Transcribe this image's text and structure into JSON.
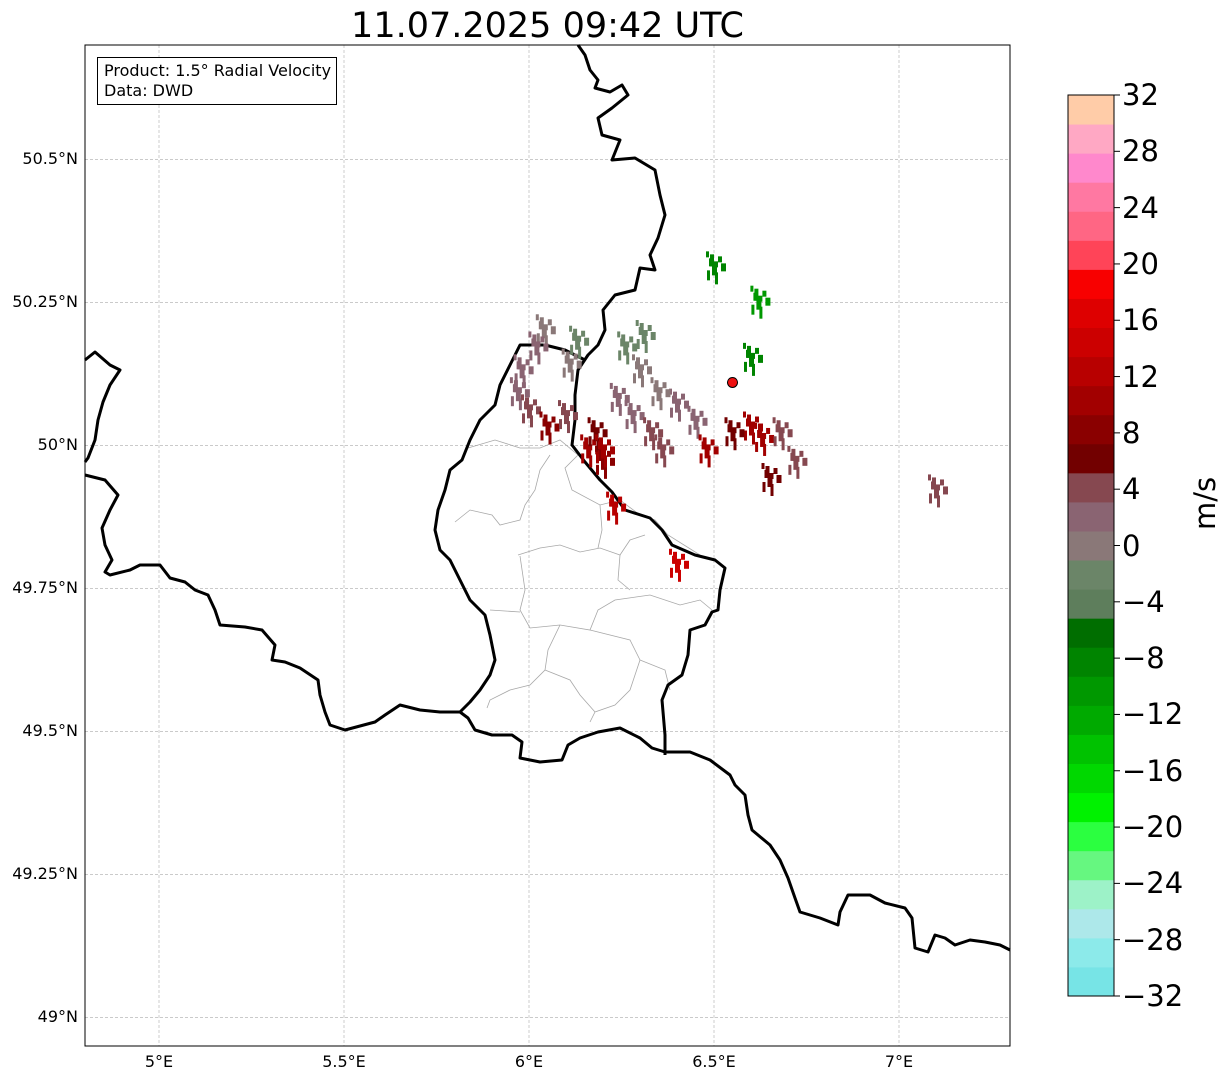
{
  "title": "11.07.2025 09:42 UTC",
  "infobox": {
    "line1": "Product: 1.5° Radial Velocity",
    "line2": "Data: DWD"
  },
  "map_extent": {
    "lon_min": 4.8,
    "lon_max": 7.3,
    "lat_min": 48.95,
    "lat_max": 50.7
  },
  "lat_ticks": [
    {
      "value": 50.5,
      "label": "50.5°N"
    },
    {
      "value": 50.25,
      "label": "50.25°N"
    },
    {
      "value": 50.0,
      "label": "50°N"
    },
    {
      "value": 49.75,
      "label": "49.75°N"
    },
    {
      "value": 49.5,
      "label": "49.5°N"
    },
    {
      "value": 49.25,
      "label": "49.25°N"
    },
    {
      "value": 49.0,
      "label": "49°N"
    }
  ],
  "lon_ticks": [
    {
      "value": 5.0,
      "label": "5°E"
    },
    {
      "value": 5.5,
      "label": "5.5°E"
    },
    {
      "value": 6.0,
      "label": "6°E"
    },
    {
      "value": 6.5,
      "label": "6.5°E"
    },
    {
      "value": 7.0,
      "label": "7°E"
    }
  ],
  "radar_site": {
    "lon": 6.55,
    "lat": 50.11,
    "color": "#ee1111"
  },
  "colorbar": {
    "unit": "m/s",
    "min": -32,
    "max": 32,
    "ticks": [
      "32",
      "28",
      "24",
      "20",
      "16",
      "12",
      "8",
      "4",
      "0",
      "−4",
      "−8",
      "−12",
      "−16",
      "−20",
      "−24",
      "−28",
      "−32"
    ],
    "colors_bottom_to_top": [
      "#77e4e6",
      "#8ceaea",
      "#ade8ea",
      "#9df2c8",
      "#66f780",
      "#2bff40",
      "#00f200",
      "#00d800",
      "#00c200",
      "#00aa00",
      "#009800",
      "#008400",
      "#006e00",
      "#5e7e5c",
      "#6b8568",
      "#8a7878",
      "#8a6472",
      "#864850",
      "#720000",
      "#8a0000",
      "#a20000",
      "#b80000",
      "#cc0000",
      "#de0000",
      "#f80000",
      "#ff4458",
      "#ff6684",
      "#ff78a2",
      "#ff88cc",
      "#ffa8c4",
      "#ffcca8"
    ]
  },
  "echoes": [
    {
      "lon": 6.04,
      "lat": 50.21,
      "v": 0
    },
    {
      "lon": 6.02,
      "lat": 50.18,
      "v": 2
    },
    {
      "lon": 5.98,
      "lat": 50.14,
      "v": 3
    },
    {
      "lon": 5.97,
      "lat": 50.1,
      "v": 3
    },
    {
      "lon": 6.0,
      "lat": 50.07,
      "v": 5
    },
    {
      "lon": 6.05,
      "lat": 50.04,
      "v": 8
    },
    {
      "lon": 6.1,
      "lat": 50.06,
      "v": 4
    },
    {
      "lon": 6.13,
      "lat": 50.19,
      "v": -2
    },
    {
      "lon": 6.11,
      "lat": 50.15,
      "v": 1
    },
    {
      "lon": 6.16,
      "lat": 50.0,
      "v": 10
    },
    {
      "lon": 6.2,
      "lat": 49.98,
      "v": 9
    },
    {
      "lon": 6.18,
      "lat": 50.03,
      "v": 7
    },
    {
      "lon": 6.24,
      "lat": 50.09,
      "v": 2
    },
    {
      "lon": 6.28,
      "lat": 50.06,
      "v": 3
    },
    {
      "lon": 6.33,
      "lat": 50.03,
      "v": 4
    },
    {
      "lon": 6.36,
      "lat": 50.0,
      "v": 4
    },
    {
      "lon": 6.3,
      "lat": 50.14,
      "v": -1
    },
    {
      "lon": 6.31,
      "lat": 50.2,
      "v": -3
    },
    {
      "lon": 6.26,
      "lat": 50.18,
      "v": -2
    },
    {
      "lon": 6.4,
      "lat": 50.08,
      "v": 2
    },
    {
      "lon": 6.45,
      "lat": 50.05,
      "v": 3
    },
    {
      "lon": 6.6,
      "lat": 50.04,
      "v": 11
    },
    {
      "lon": 6.63,
      "lat": 50.02,
      "v": 10
    },
    {
      "lon": 6.55,
      "lat": 50.03,
      "v": 6
    },
    {
      "lon": 6.68,
      "lat": 50.03,
      "v": 4
    },
    {
      "lon": 6.72,
      "lat": 49.98,
      "v": 4
    },
    {
      "lon": 6.23,
      "lat": 49.9,
      "v": 12
    },
    {
      "lon": 6.4,
      "lat": 49.8,
      "v": 15
    },
    {
      "lon": 6.5,
      "lat": 50.32,
      "v": -9
    },
    {
      "lon": 6.62,
      "lat": 50.26,
      "v": -10
    },
    {
      "lon": 6.6,
      "lat": 50.16,
      "v": -8
    },
    {
      "lon": 6.48,
      "lat": 50.0,
      "v": 10
    },
    {
      "lon": 6.35,
      "lat": 50.1,
      "v": 1
    },
    {
      "lon": 7.1,
      "lat": 49.93,
      "v": 4
    },
    {
      "lon": 6.2,
      "lat": 50.0,
      "v": 11
    },
    {
      "lon": 6.65,
      "lat": 49.95,
      "v": 7
    }
  ]
}
